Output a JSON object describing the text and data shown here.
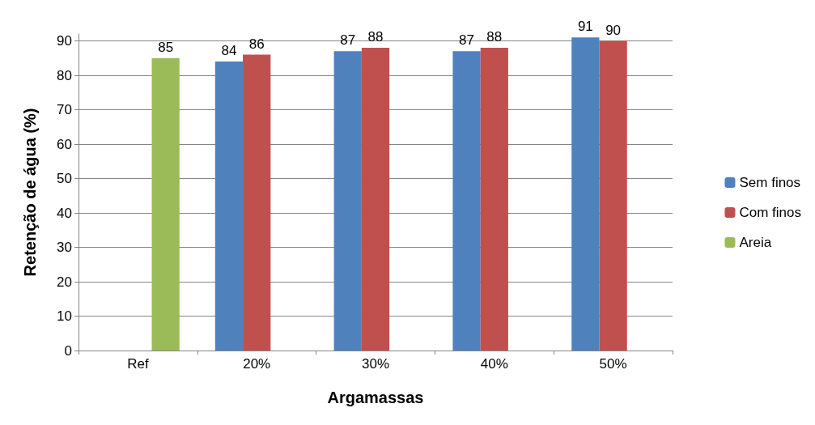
{
  "chart_data": {
    "type": "bar",
    "xlabel": "Argamassas",
    "ylabel": "Retenção de água (%)",
    "categories": [
      "Ref",
      "20%",
      "30%",
      "40%",
      "50%"
    ],
    "series": [
      {
        "name": "Sem finos",
        "color": "#4f81bd",
        "values": [
          null,
          84,
          87,
          87,
          91
        ]
      },
      {
        "name": "Com finos",
        "color": "#c0504d",
        "values": [
          null,
          86,
          88,
          88,
          90
        ]
      },
      {
        "name": "Areia",
        "color": "#9bbb59",
        "values": [
          85,
          null,
          null,
          null,
          null
        ]
      }
    ],
    "ylim": [
      0,
      92
    ],
    "yticks": [
      0,
      10,
      20,
      30,
      40,
      50,
      60,
      70,
      80,
      90
    ],
    "grid": "y",
    "legend": "right",
    "data_labels": true
  }
}
